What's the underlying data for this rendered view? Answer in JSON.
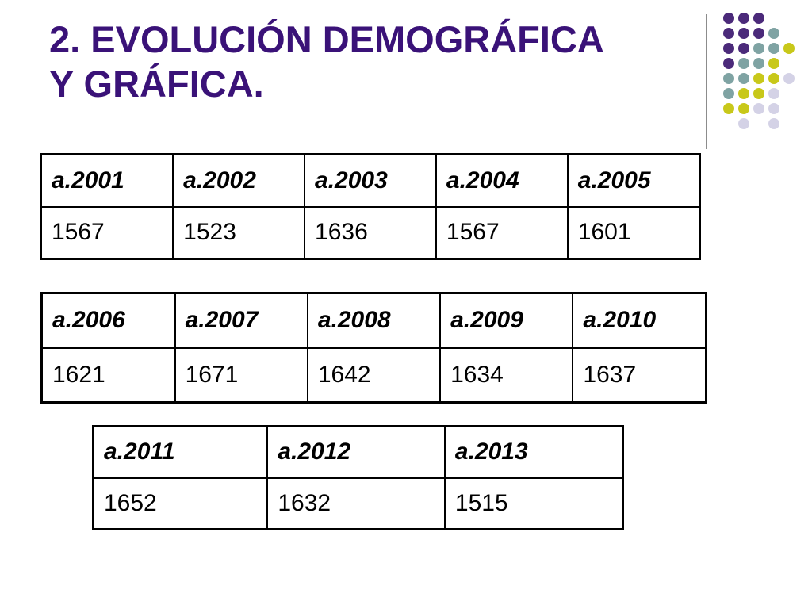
{
  "slide": {
    "title_line1": "2. EVOLUCIÓN DEMOGRÁFICA",
    "title_line2": "Y GRÁFICA.",
    "accent_colors": {
      "title": "#3a1278",
      "purple": "#4b2a7a",
      "teal": "#7fa3a3",
      "lime": "#c8c81a",
      "lavender": "#d4d2e6"
    }
  },
  "tables": [
    {
      "years": [
        "a.2001",
        "a.2002",
        "a.2003",
        "a.2004",
        "a.2005"
      ],
      "values": [
        "1567",
        "1523",
        "1636",
        "1567",
        "1601"
      ]
    },
    {
      "years": [
        "a.2006",
        "a.2007",
        "a.2008",
        "a.2009",
        "a.2010"
      ],
      "values": [
        "1621",
        "1671",
        "1642",
        "1634",
        "1637"
      ]
    },
    {
      "years": [
        "a.2011",
        "a.2012",
        "a.2013"
      ],
      "values": [
        "1652",
        "1632",
        "1515"
      ]
    }
  ]
}
